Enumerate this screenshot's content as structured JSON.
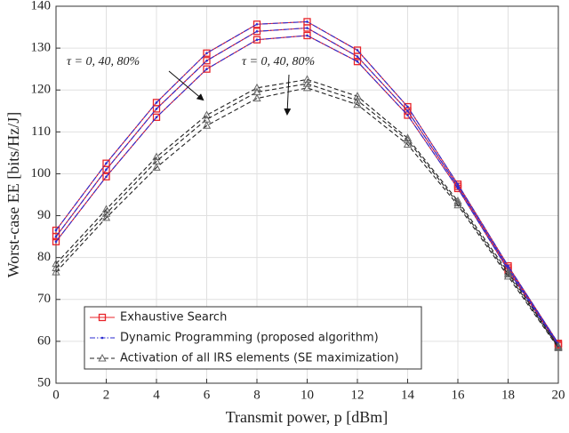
{
  "chart_data": {
    "type": "line",
    "x_label": "Transmit power, p [dBm]",
    "y_label": "Worst-case EE [bits/Hz/J]",
    "x": [
      0,
      2,
      4,
      6,
      8,
      10,
      12,
      14,
      16,
      18,
      20
    ],
    "xlim": [
      0,
      20
    ],
    "xticks": [
      0,
      2,
      4,
      6,
      8,
      10,
      12,
      14,
      16,
      18,
      20
    ],
    "ylim": [
      50,
      140
    ],
    "yticks": [
      50,
      60,
      70,
      80,
      90,
      100,
      110,
      120,
      130,
      140
    ],
    "grid": true,
    "legend_position": "lower left",
    "series": [
      {
        "name": "Exhaustive Search",
        "color": "#e8242a",
        "marker": "square",
        "dash": "solid",
        "values": [
          [
            86.5,
            102.5,
            117,
            128.8,
            135.7,
            136.3,
            129.5,
            116,
            97.5,
            78,
            59.5
          ],
          [
            85,
            101,
            115.5,
            127,
            134,
            134.8,
            128,
            115,
            97,
            77.5,
            59.3
          ],
          [
            83.8,
            99.3,
            113.5,
            125,
            132,
            133,
            126.8,
            114,
            96.5,
            77,
            59
          ]
        ]
      },
      {
        "name": "Dynamic Programming (proposed algorithm)",
        "color": "#2b2bd0",
        "marker": "dot",
        "dash": "dashdot",
        "values": [
          [
            86.5,
            102.5,
            117,
            128.8,
            135.7,
            136.3,
            129.5,
            116,
            97.5,
            78,
            59.5
          ],
          [
            85,
            101,
            115.5,
            127,
            134,
            134.8,
            128,
            115,
            97,
            77.5,
            59.3
          ],
          [
            83.8,
            99.3,
            113.5,
            125,
            132,
            133,
            126.8,
            114,
            96.5,
            77,
            59
          ]
        ]
      },
      {
        "name": "Activation of all IRS elements (SE maximization)",
        "color": "#222222",
        "marker": "triangle",
        "dash": "dashed",
        "values": [
          [
            78.5,
            91.5,
            104,
            114,
            120.5,
            122.5,
            118.5,
            108.5,
            93.5,
            76.5,
            58.8
          ],
          [
            77.5,
            90.5,
            103,
            113,
            119.5,
            121.5,
            117.5,
            108,
            93,
            76,
            58.6
          ],
          [
            76.5,
            89.5,
            101.5,
            111.5,
            118,
            120.5,
            116.5,
            107,
            92.5,
            75.5,
            58.4
          ]
        ]
      }
    ],
    "annotations": [
      {
        "text": "τ = 0, 40, 80%"
      },
      {
        "text": "τ = 0, 40, 80%"
      }
    ]
  }
}
